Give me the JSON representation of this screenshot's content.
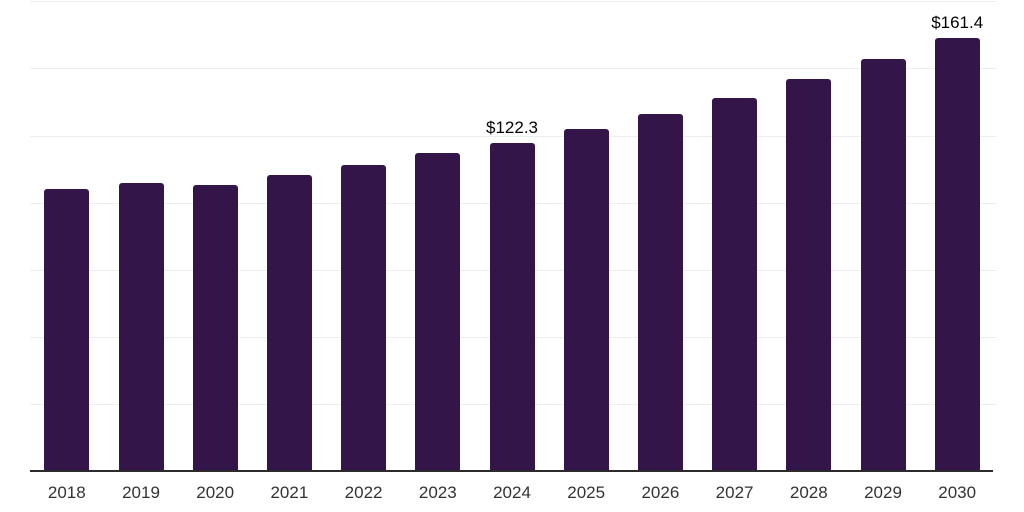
{
  "chart_data": {
    "type": "bar",
    "title": "",
    "xlabel": "",
    "ylabel": "",
    "categories": [
      "2018",
      "2019",
      "2020",
      "2021",
      "2022",
      "2023",
      "2024",
      "2025",
      "2026",
      "2027",
      "2028",
      "2029",
      "2030"
    ],
    "values": [
      104.9,
      107.4,
      106.4,
      110.4,
      114.2,
      118.6,
      122.3,
      127.3,
      133.0,
      139.1,
      145.9,
      153.4,
      161.4
    ],
    "value_labels": [
      {
        "category": "2024",
        "text": "$122.3"
      },
      {
        "category": "2030",
        "text": "$161.4"
      }
    ],
    "ylim": [
      0,
      175
    ],
    "gridline_step": 25,
    "grid": true,
    "y_tick_labels_visible": false,
    "legend": "none",
    "colors": {
      "bar": "#331549",
      "gridline": "#eeeeee",
      "axis_line": "#2b2b2b",
      "tick_label": "#333333",
      "value_label": "#000000",
      "background": "#ffffff"
    }
  }
}
